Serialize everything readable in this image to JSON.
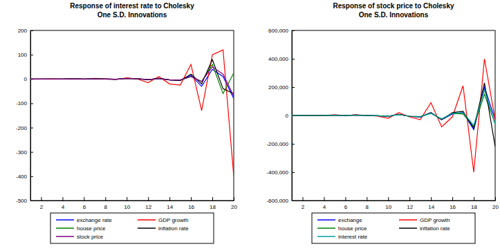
{
  "chart_data": [
    {
      "type": "line",
      "title": [
        "Response of interest rate to Cholesky",
        "One S.D. Innovations"
      ],
      "x": [
        1,
        2,
        3,
        4,
        5,
        6,
        7,
        8,
        9,
        10,
        11,
        12,
        13,
        14,
        15,
        16,
        17,
        18,
        19,
        20
      ],
      "xlim": [
        1,
        20
      ],
      "xticks": [
        2,
        4,
        6,
        8,
        10,
        12,
        14,
        16,
        18,
        20
      ],
      "ylim": [
        -500,
        200
      ],
      "yticks": [
        -500,
        -400,
        -300,
        -200,
        -100,
        0,
        100,
        200
      ],
      "grid": false,
      "legend": "bottom",
      "series": [
        {
          "name": "exchange rate",
          "color": "#0000ff",
          "values": [
            0,
            0,
            0,
            0,
            1,
            0,
            1,
            0,
            -1,
            3,
            1,
            -3,
            2,
            -4,
            -6,
            15,
            -30,
            40,
            10,
            -80
          ]
        },
        {
          "name": "GDP growth",
          "color": "#ff0000",
          "values": [
            0,
            0,
            1,
            0,
            2,
            -1,
            3,
            1,
            -2,
            5,
            0,
            -15,
            10,
            -20,
            -25,
            60,
            -130,
            100,
            120,
            -400
          ]
        },
        {
          "name": "house price",
          "color": "#008000",
          "values": [
            0,
            0,
            0,
            0,
            1,
            0,
            1,
            0,
            -1,
            2,
            1,
            -2,
            2,
            -3,
            -5,
            10,
            -10,
            60,
            -60,
            25
          ]
        },
        {
          "name": "inflation rate",
          "color": "#000000",
          "values": [
            0,
            0,
            0,
            0,
            1,
            0,
            1,
            0,
            -1,
            3,
            1,
            -3,
            3,
            -4,
            -6,
            20,
            -20,
            80,
            -40,
            -60
          ]
        },
        {
          "name": "stock price",
          "color": "#800080",
          "values": [
            0,
            0,
            0,
            0,
            1,
            0,
            1,
            0,
            -1,
            2,
            1,
            -2,
            2,
            -3,
            -4,
            10,
            -10,
            50,
            20,
            -70
          ]
        }
      ]
    },
    {
      "type": "line",
      "title": [
        "Response of stock price to Cholesky",
        "One S.D. Innovations"
      ],
      "x": [
        1,
        2,
        3,
        4,
        5,
        6,
        7,
        8,
        9,
        10,
        11,
        12,
        13,
        14,
        15,
        16,
        17,
        18,
        19,
        20
      ],
      "xlim": [
        1,
        20
      ],
      "xticks": [
        2,
        4,
        6,
        8,
        10,
        12,
        14,
        16,
        18,
        20
      ],
      "ylim": [
        -600000,
        600000
      ],
      "yticks": [
        {
          "value": -600000,
          "label": "-600,000"
        },
        {
          "value": -400000,
          "label": "-400,000"
        },
        {
          "value": -200000,
          "label": "-200,000"
        },
        0,
        {
          "value": 200000,
          "label": "200,000"
        },
        {
          "value": 400000,
          "label": "400,000"
        },
        {
          "value": 600000,
          "label": "600,000"
        }
      ],
      "grid": false,
      "legend": "bottom",
      "series": [
        {
          "name": "exchange",
          "color": "#0000ff",
          "values": [
            0,
            0,
            0,
            0,
            2000,
            0,
            3000,
            0,
            -2000,
            -5000,
            8000,
            -6000,
            -10000,
            20000,
            -30000,
            10000,
            20000,
            -100000,
            200000,
            -30000
          ]
        },
        {
          "name": "GDP growth",
          "color": "#ff0000",
          "values": [
            0,
            0,
            0,
            0,
            5000,
            0,
            5000,
            0,
            -5000,
            -20000,
            20000,
            -10000,
            -30000,
            90000,
            -80000,
            -10000,
            210000,
            -400000,
            400000,
            -30000
          ]
        },
        {
          "name": "house price",
          "color": "#008000",
          "values": [
            0,
            0,
            0,
            0,
            2000,
            0,
            2000,
            0,
            -2000,
            -5000,
            6000,
            -5000,
            -8000,
            15000,
            -25000,
            15000,
            10000,
            -80000,
            150000,
            -60000
          ]
        },
        {
          "name": "inflation rate",
          "color": "#000000",
          "values": [
            0,
            0,
            0,
            0,
            2000,
            0,
            3000,
            0,
            -2000,
            -6000,
            8000,
            -6000,
            -10000,
            20000,
            -30000,
            20000,
            30000,
            -90000,
            230000,
            -220000
          ]
        },
        {
          "name": "interest rate",
          "color": "#00a0a0",
          "values": [
            0,
            0,
            0,
            0,
            2000,
            0,
            2000,
            0,
            -2000,
            -5000,
            7000,
            -5000,
            -8000,
            15000,
            -25000,
            15000,
            20000,
            -70000,
            180000,
            -60000
          ]
        }
      ]
    }
  ]
}
